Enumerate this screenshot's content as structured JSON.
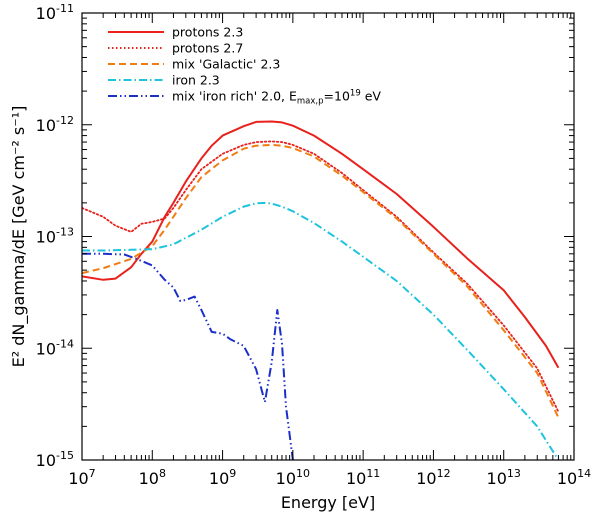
{
  "chart_data": {
    "type": "line",
    "title": "",
    "xlabel": "Energy [eV]",
    "ylabel": "E² dN_gamma/dE [GeV cm⁻² s⁻¹]",
    "xscale": "log",
    "yscale": "log",
    "xlim": [
      10000000.0,
      100000000000000.0
    ],
    "ylim": [
      1e-15,
      1e-11
    ],
    "grid": false,
    "legend_position": "top-left",
    "x_ticks": [
      {
        "base": "10",
        "exp": "7"
      },
      {
        "base": "10",
        "exp": "8"
      },
      {
        "base": "10",
        "exp": "9"
      },
      {
        "base": "10",
        "exp": "10"
      },
      {
        "base": "10",
        "exp": "11"
      },
      {
        "base": "10",
        "exp": "12"
      },
      {
        "base": "10",
        "exp": "13"
      },
      {
        "base": "10",
        "exp": "14"
      }
    ],
    "y_ticks": [
      {
        "base": "10",
        "exp": "-15"
      },
      {
        "base": "10",
        "exp": "-14"
      },
      {
        "base": "10",
        "exp": "-13"
      },
      {
        "base": "10",
        "exp": "-12"
      },
      {
        "base": "10",
        "exp": "-11"
      }
    ],
    "series": [
      {
        "name": "protons 2.3",
        "color": "#e8211c",
        "style": "solid",
        "x": [
          10000000.0,
          20000000.0,
          30000000.0,
          50000000.0,
          70000000.0,
          100000000.0,
          150000000.0,
          200000000.0,
          300000000.0,
          500000000.0,
          700000000.0,
          1000000000.0,
          2000000000.0,
          3000000000.0,
          5000000000.0,
          7000000000.0,
          10000000000.0,
          20000000000.0,
          50000000000.0,
          100000000000.0,
          300000000000.0,
          1000000000000.0,
          3000000000000.0,
          10000000000000.0,
          20000000000000.0,
          40000000000000.0,
          60000000000000.0
        ],
        "y": [
          4.4e-14,
          4.1e-14,
          4.2e-14,
          5.3e-14,
          7e-14,
          9e-14,
          1.5e-13,
          2e-13,
          3.1e-13,
          5e-13,
          6.5e-13,
          8e-13,
          9.7e-13,
          1.06e-12,
          1.07e-12,
          1.05e-12,
          9.8e-13,
          8e-13,
          5.5e-13,
          4e-13,
          2.4e-13,
          1.22e-13,
          6.4e-14,
          3.3e-14,
          1.9e-14,
          1.05e-14,
          6.7e-15
        ]
      },
      {
        "name": "protons 2.7",
        "color": "#e8211c",
        "style": "dotted",
        "x": [
          10000000.0,
          20000000.0,
          30000000.0,
          50000000.0,
          70000000.0,
          100000000.0,
          150000000.0,
          200000000.0,
          300000000.0,
          500000000.0,
          1000000000.0,
          2000000000.0,
          3000000000.0,
          5000000000.0,
          7000000000.0,
          10000000000.0,
          20000000000.0,
          50000000000.0,
          100000000000.0,
          300000000000.0,
          1000000000000.0,
          3000000000000.0,
          10000000000000.0,
          30000000000000.0,
          60000000000000.0
        ],
        "y": [
          1.8e-13,
          1.5e-13,
          1.25e-13,
          1.1e-13,
          1.3e-13,
          1.35e-13,
          1.45e-13,
          1.8e-13,
          2.6e-13,
          4e-13,
          5.5e-13,
          6.6e-13,
          7e-13,
          7.1e-13,
          7e-13,
          6.6e-13,
          5.5e-13,
          3.7e-13,
          2.6e-13,
          1.5e-13,
          7.2e-14,
          3.8e-14,
          1.6e-14,
          6.6e-15,
          2.7e-15
        ]
      },
      {
        "name": "mix 'Galactic' 2.3",
        "color": "#ef7d12",
        "style": "dashed",
        "x": [
          10000000.0,
          20000000.0,
          50000000.0,
          100000000.0,
          150000000.0,
          200000000.0,
          300000000.0,
          500000000.0,
          1000000000.0,
          2000000000.0,
          3000000000.0,
          5000000000.0,
          7000000000.0,
          10000000000.0,
          20000000000.0,
          50000000000.0,
          100000000000.0,
          300000000000.0,
          1000000000000.0,
          3000000000000.0,
          10000000000000.0,
          30000000000000.0,
          60000000000000.0
        ],
        "y": [
          4.7e-14,
          5.2e-14,
          6.3e-14,
          8.2e-14,
          1.15e-13,
          1.5e-13,
          2.2e-13,
          3.4e-13,
          4.8e-13,
          6.1e-13,
          6.5e-13,
          6.6e-13,
          6.5e-13,
          6.2e-13,
          5.2e-13,
          3.5e-13,
          2.5e-13,
          1.45e-13,
          7e-14,
          3.6e-14,
          1.45e-14,
          6e-15,
          2.4e-15
        ]
      },
      {
        "name": "iron 2.3",
        "color": "#1fc3de",
        "style": "dashdot",
        "x": [
          10000000.0,
          20000000.0,
          50000000.0,
          100000000.0,
          200000000.0,
          500000000.0,
          1000000000.0,
          2000000000.0,
          3000000000.0,
          4000000000.0,
          5000000000.0,
          7000000000.0,
          10000000000.0,
          20000000000.0,
          50000000000.0,
          100000000000.0,
          300000000000.0,
          1000000000000.0,
          3000000000000.0,
          10000000000000.0,
          30000000000000.0,
          60000000000000.0
        ],
        "y": [
          7.5e-14,
          7.5e-14,
          7.6e-14,
          7.7e-14,
          8.5e-14,
          1.15e-13,
          1.5e-13,
          1.85e-13,
          1.98e-13,
          2e-13,
          1.97e-13,
          1.85e-13,
          1.68e-13,
          1.32e-13,
          9e-14,
          6.6e-14,
          4e-14,
          2e-14,
          9.7e-15,
          4.3e-15,
          2e-15,
          1e-15
        ]
      },
      {
        "name": "mix 'iron rich' 2.0, E",
        "name_sub": "max,p",
        "name_tail": "=10",
        "name_exp": "19",
        "name_end": " eV",
        "color": "#1d2fc9",
        "style": "dashdotdot",
        "x": [
          10000000.0,
          20000000.0,
          40000000.0,
          60000000.0,
          100000000.0,
          150000000.0,
          200000000.0,
          250000000.0,
          300000000.0,
          400000000.0,
          500000000.0,
          700000000.0,
          1000000000.0,
          1300000000.0,
          2000000000.0,
          3000000000.0,
          4000000000.0,
          5000000000.0,
          6000000000.0,
          7000000000.0,
          8000000000.0,
          10000000000.0
        ],
        "y": [
          7e-14,
          7e-14,
          6.9e-14,
          6.3e-14,
          5.5e-14,
          4.1e-14,
          3.5e-14,
          2.65e-14,
          2.7e-14,
          2.9e-14,
          2.2e-14,
          1.4e-14,
          1.35e-14,
          1.2e-14,
          1.05e-14,
          6.5e-15,
          3.3e-15,
          7.5e-15,
          2.2e-14,
          1.1e-14,
          3e-15,
          1e-15
        ]
      }
    ]
  }
}
